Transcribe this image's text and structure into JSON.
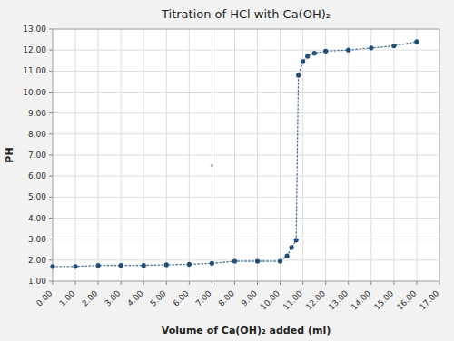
{
  "chart_data": {
    "type": "line",
    "title": "Titration of HCl with Ca(OH)₂",
    "x_label": "Volume of Ca(OH)₂ added (ml)",
    "y_label": "PH",
    "xlim": [
      0.0,
      17.0
    ],
    "ylim": [
      1.0,
      13.0
    ],
    "xticks": [
      {
        "value": 0.0,
        "label": "0.00"
      },
      {
        "value": 1.0,
        "label": "1.00"
      },
      {
        "value": 2.0,
        "label": "2.00"
      },
      {
        "value": 3.0,
        "label": "3.00"
      },
      {
        "value": 4.0,
        "label": "4.00"
      },
      {
        "value": 5.0,
        "label": "5.00"
      },
      {
        "value": 6.0,
        "label": "6.00"
      },
      {
        "value": 7.0,
        "label": "7.00"
      },
      {
        "value": 8.0,
        "label": "8.00"
      },
      {
        "value": 9.0,
        "label": "9.00"
      },
      {
        "value": 10.0,
        "label": "10.00"
      },
      {
        "value": 11.0,
        "label": "11.00"
      },
      {
        "value": 12.0,
        "label": "12.00"
      },
      {
        "value": 13.0,
        "label": "13.00"
      },
      {
        "value": 14.0,
        "label": "14.00"
      },
      {
        "value": 15.0,
        "label": "15.00"
      },
      {
        "value": 16.0,
        "label": "16.00"
      },
      {
        "value": 17.0,
        "label": "17.00"
      }
    ],
    "yticks": [
      {
        "value": 1.0,
        "label": "1.00"
      },
      {
        "value": 2.0,
        "label": "2.00"
      },
      {
        "value": 3.0,
        "label": "3.00"
      },
      {
        "value": 4.0,
        "label": "4.00"
      },
      {
        "value": 5.0,
        "label": "5.00"
      },
      {
        "value": 6.0,
        "label": "6.00"
      },
      {
        "value": 7.0,
        "label": "7.00"
      },
      {
        "value": 8.0,
        "label": "8.00"
      },
      {
        "value": 9.0,
        "label": "9.00"
      },
      {
        "value": 10.0,
        "label": "10.00"
      },
      {
        "value": 11.0,
        "label": "11.00"
      },
      {
        "value": 12.0,
        "label": "12.00"
      },
      {
        "value": 13.0,
        "label": "13.00"
      }
    ],
    "grid": true,
    "series": [
      {
        "type": "line",
        "color": "#1f4e79",
        "marker": "circle",
        "line_style": "dotted",
        "x": [
          0.0,
          1.0,
          2.0,
          3.0,
          4.0,
          5.0,
          6.0,
          7.0,
          8.0,
          9.0,
          10.0,
          10.3,
          10.5,
          10.7,
          10.8,
          11.0,
          11.2,
          11.5,
          12.0,
          13.0,
          14.0,
          15.0,
          16.0
        ],
        "values": [
          1.7,
          1.7,
          1.75,
          1.75,
          1.75,
          1.78,
          1.8,
          1.85,
          1.95,
          1.95,
          1.95,
          2.2,
          2.6,
          2.95,
          10.8,
          11.45,
          11.7,
          11.85,
          11.95,
          12.0,
          12.1,
          12.2,
          12.4
        ]
      },
      {
        "type": "scatter",
        "color": "#1f4e79",
        "marker": "circle",
        "x": [
          7.0
        ],
        "values": [
          6.5
        ]
      }
    ]
  }
}
